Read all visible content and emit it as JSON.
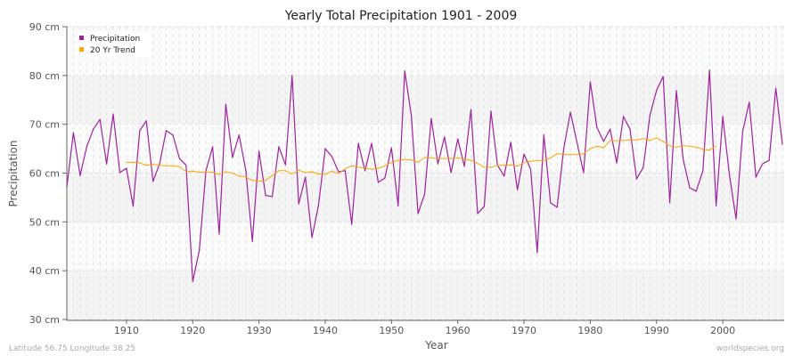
{
  "chart_data": {
    "type": "line",
    "title": "Yearly Total Precipitation 1901 - 2009",
    "xlabel": "Year",
    "ylabel": "Precipitation",
    "ylim": [
      30,
      90
    ],
    "xlim": [
      1901,
      2009
    ],
    "y_unit": "cm",
    "yticks": [
      "30 cm",
      "40 cm",
      "50 cm",
      "60 cm",
      "70 cm",
      "80 cm",
      "90 cm"
    ],
    "xticks": [
      "1910",
      "1920",
      "1930",
      "1940",
      "1950",
      "1960",
      "1970",
      "1980",
      "1990",
      "2000"
    ],
    "grid": true,
    "legend_position": "top-left",
    "series": [
      {
        "name": "Precipitation",
        "color": "#a020a0",
        "x_start": 1901,
        "values": [
          57.2,
          68.3,
          59.5,
          65.4,
          69.0,
          71.0,
          61.9,
          72.1,
          60.1,
          61.0,
          53.2,
          68.7,
          70.7,
          58.3,
          61.9,
          68.7,
          67.8,
          63.0,
          61.6,
          37.8,
          44.2,
          60.5,
          65.4,
          47.5,
          74.1,
          63.2,
          67.8,
          60.6,
          46.0,
          64.5,
          55.4,
          55.2,
          65.4,
          61.7,
          80.0,
          53.7,
          59.2,
          46.8,
          53.5,
          65.0,
          63.4,
          60.3,
          60.5,
          49.5,
          66.1,
          60.5,
          66.1,
          58.1,
          59.0,
          65.2,
          53.3,
          80.9,
          71.8,
          51.7,
          55.7,
          71.2,
          61.9,
          67.4,
          60.1,
          67.0,
          61.4,
          73.0,
          51.7,
          53.2,
          72.7,
          61.6,
          59.4,
          66.3,
          56.6,
          63.9,
          60.8,
          43.7,
          67.8,
          53.9,
          53.0,
          65.0,
          72.5,
          66.3,
          60.1,
          78.7,
          69.4,
          66.5,
          69.0,
          62.1,
          71.6,
          69.0,
          58.8,
          61.2,
          71.8,
          76.9,
          79.8,
          53.9,
          76.9,
          63.0,
          57.0,
          56.3,
          60.5,
          81.1,
          53.3,
          71.6,
          59.7,
          50.6,
          68.5,
          74.5,
          59.2,
          61.9,
          62.6,
          77.4,
          65.9
        ]
      },
      {
        "name": "20 Yr Trend",
        "color": "#ffa500",
        "x_start": 1910,
        "values": [
          62.2,
          62.2,
          62.1,
          61.6,
          61.8,
          61.6,
          61.5,
          61.5,
          61.3,
          60.3,
          60.4,
          60.2,
          60.2,
          60.2,
          59.7,
          60.3,
          60.0,
          59.4,
          59.2,
          58.5,
          58.3,
          58.5,
          59.5,
          60.5,
          60.5,
          59.8,
          60.6,
          60.1,
          60.3,
          59.8,
          59.7,
          60.4,
          59.9,
          60.9,
          61.5,
          61.2,
          61.0,
          60.8,
          61.0,
          61.5,
          62.2,
          62.6,
          62.8,
          62.7,
          62.2,
          63.2,
          63.1,
          63.0,
          63.0,
          63.0,
          63.1,
          62.9,
          62.6,
          62.0,
          61.2,
          61.2,
          61.6,
          61.6,
          61.7,
          61.4,
          62.2,
          62.4,
          62.6,
          62.6,
          63.1,
          64.0,
          63.8,
          63.8,
          63.8,
          64.0,
          65.0,
          65.5,
          65.2,
          66.7,
          66.6,
          66.7,
          66.8,
          66.8,
          67.1,
          66.7,
          67.2,
          66.5,
          65.6,
          65.3,
          65.6,
          65.5,
          65.3,
          64.9,
          64.7,
          65.6
        ]
      }
    ]
  },
  "footer": {
    "location": "Latitude 56.75 Longitude 38.25",
    "source": "worldspecies.org"
  }
}
